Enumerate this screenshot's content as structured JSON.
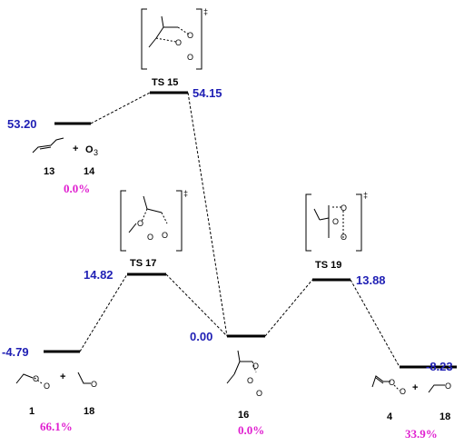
{
  "levels": [
    {
      "id": "reactants",
      "energy": "53.20",
      "labels": [
        "13",
        "+",
        "14"
      ],
      "percent": "0.0%"
    },
    {
      "id": "ts15",
      "ts_label": "TS 15",
      "energy": "54.15"
    },
    {
      "id": "ts17",
      "ts_label": "TS 17",
      "energy": "14.82"
    },
    {
      "id": "p1",
      "energy": "-4.79",
      "labels": [
        "1",
        "+",
        "18"
      ],
      "percent": "66.1%"
    },
    {
      "id": "i16",
      "energy": "0.00",
      "labels": [
        "16"
      ],
      "percent": "0.0%"
    },
    {
      "id": "ts19",
      "ts_label": "TS 19",
      "energy": "13.88"
    },
    {
      "id": "p4",
      "energy": "-8.23",
      "labels": [
        "4",
        "+",
        "18"
      ],
      "percent": "33.9%"
    }
  ],
  "symbols": {
    "dagger": "‡",
    "o3": "O",
    "o3_sub": "3",
    "oxygen": "O"
  }
}
